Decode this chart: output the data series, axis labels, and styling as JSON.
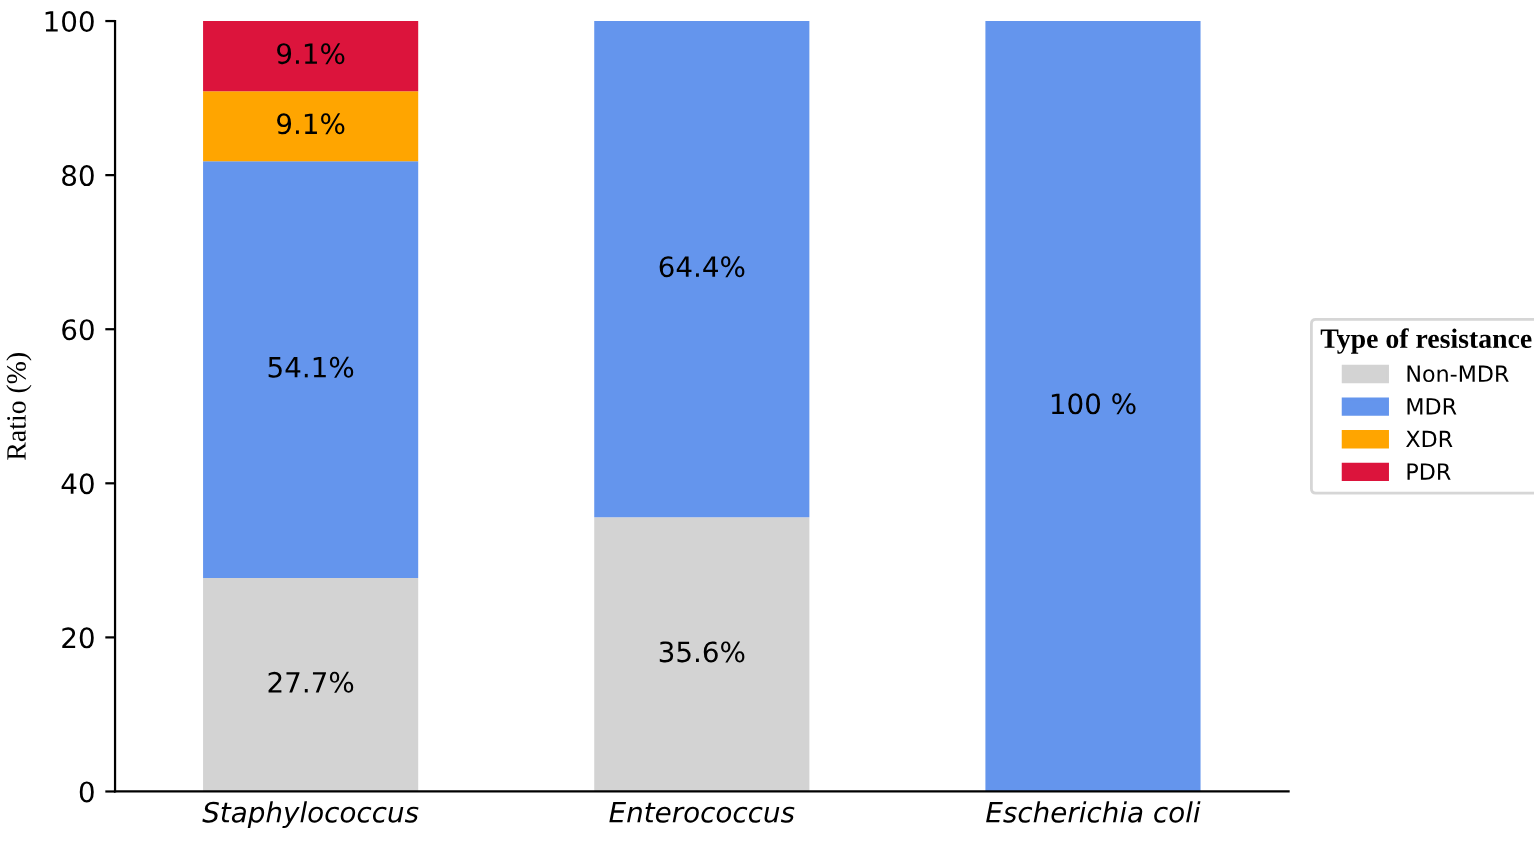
{
  "chart_data": {
    "type": "bar",
    "stacked": true,
    "ylabel": "Ratio (%)",
    "legend_title": "Type of resistance",
    "legend": "right",
    "categories": [
      "Staphylococcus",
      "Enterococcus",
      "Escherichia coli"
    ],
    "series": [
      {
        "name": "Non-MDR",
        "color": "#d3d3d3",
        "values": [
          27.7,
          35.6,
          0
        ],
        "value_labels": [
          "27.7%",
          "35.6%",
          null
        ]
      },
      {
        "name": "MDR",
        "color": "#6495ed",
        "values": [
          54.1,
          64.4,
          100
        ],
        "value_labels": [
          "54.1%",
          "64.4%",
          "100 %"
        ]
      },
      {
        "name": "XDR",
        "color": "#ffa500",
        "values": [
          9.1,
          0,
          0
        ],
        "value_labels": [
          "9.1%",
          null,
          null
        ]
      },
      {
        "name": "PDR",
        "color": "#dc143c",
        "values": [
          9.1,
          0,
          0
        ],
        "value_labels": [
          "9.1%",
          null,
          null
        ]
      }
    ],
    "ylim": [
      0,
      100
    ],
    "yticks": [
      0,
      20,
      40,
      60,
      80,
      100
    ],
    "grid": false
  }
}
